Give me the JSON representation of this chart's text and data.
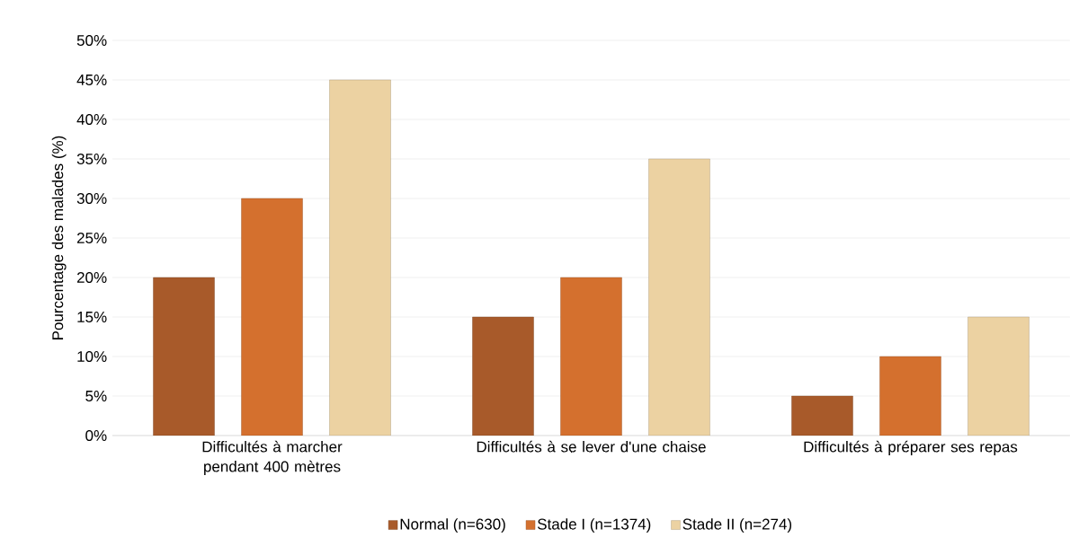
{
  "chart_data": {
    "type": "bar",
    "ylabel": "Pourcentage des malades (%)",
    "categories": [
      "Difficultés à marcher pendant 400 mètres",
      "Difficultés à se lever d'une chaise",
      "Difficultés à préparer ses repas"
    ],
    "series": [
      {
        "name": "Normal (n=630)",
        "color": "#a85a2a",
        "values": [
          20,
          15,
          5
        ]
      },
      {
        "name": "Stade I (n=1374)",
        "color": "#d4702e",
        "values": [
          30,
          20,
          10
        ]
      },
      {
        "name": "Stade II (n=274)",
        "color": "#ecd2a2",
        "values": [
          45,
          35,
          15
        ]
      }
    ],
    "ylim": [
      0,
      50
    ],
    "yticks": [
      {
        "value": 0,
        "label": "0%"
      },
      {
        "value": 5,
        "label": "5%"
      },
      {
        "value": 10,
        "label": "10%"
      },
      {
        "value": 15,
        "label": "15%"
      },
      {
        "value": 20,
        "label": "20%"
      },
      {
        "value": 25,
        "label": "25%"
      },
      {
        "value": 30,
        "label": "30%"
      },
      {
        "value": 35,
        "label": "35%"
      },
      {
        "value": 40,
        "label": "40%"
      },
      {
        "value": 45,
        "label": "45%"
      },
      {
        "value": 50,
        "label": "50%"
      }
    ],
    "grid": "y",
    "legend": "bottom"
  }
}
